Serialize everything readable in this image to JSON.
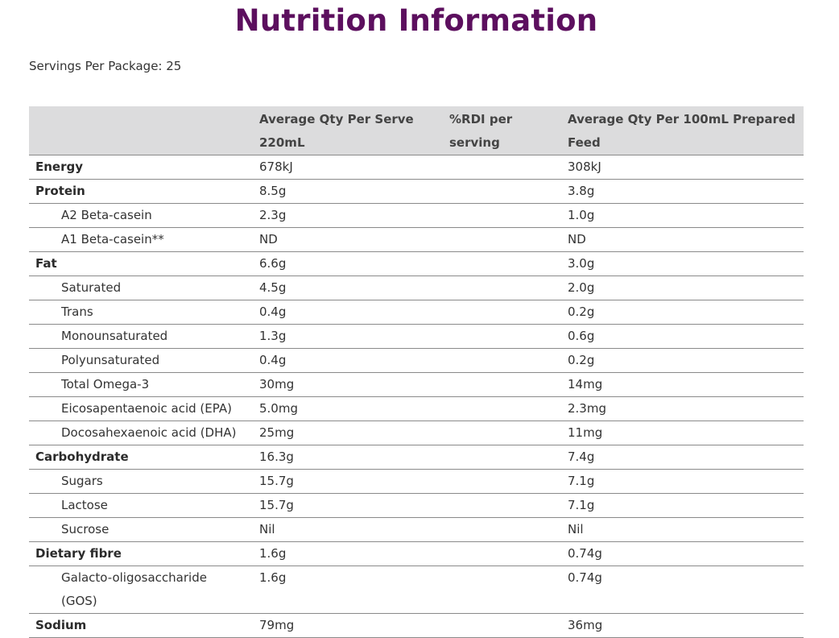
{
  "title": "Nutrition Information",
  "servings_text": "Servings Per Package: 25",
  "table": {
    "headers": [
      "",
      "Average Qty Per Serve 220mL",
      "%RDI per serving",
      "Average Qty Per 100mL Prepared Feed"
    ],
    "rows": [
      {
        "label": "Energy",
        "level": "main",
        "per_serve": "678kJ",
        "rdi": "",
        "per_100ml": "308kJ"
      },
      {
        "label": "Protein",
        "level": "main",
        "per_serve": "8.5g",
        "rdi": "",
        "per_100ml": "3.8g"
      },
      {
        "label": "A2 Beta-casein",
        "level": "sub",
        "per_serve": "2.3g",
        "rdi": "",
        "per_100ml": "1.0g"
      },
      {
        "label": "A1 Beta-casein**",
        "level": "sub",
        "per_serve": "ND",
        "rdi": "",
        "per_100ml": "ND"
      },
      {
        "label": "Fat",
        "level": "main",
        "per_serve": "6.6g",
        "rdi": "",
        "per_100ml": "3.0g"
      },
      {
        "label": "Saturated",
        "level": "sub",
        "per_serve": "4.5g",
        "rdi": "",
        "per_100ml": "2.0g"
      },
      {
        "label": "Trans",
        "level": "sub",
        "per_serve": "0.4g",
        "rdi": "",
        "per_100ml": "0.2g"
      },
      {
        "label": "Monounsaturated",
        "level": "sub",
        "per_serve": "1.3g",
        "rdi": "",
        "per_100ml": "0.6g"
      },
      {
        "label": "Polyunsaturated",
        "level": "sub",
        "per_serve": "0.4g",
        "rdi": "",
        "per_100ml": "0.2g"
      },
      {
        "label": "Total Omega-3",
        "level": "sub",
        "per_serve": "30mg",
        "rdi": "",
        "per_100ml": "14mg"
      },
      {
        "label": "Eicosapentaenoic acid (EPA)",
        "level": "sub",
        "per_serve": "5.0mg",
        "rdi": "",
        "per_100ml": "2.3mg"
      },
      {
        "label": "Docosahexaenoic acid (DHA)",
        "level": "sub",
        "per_serve": "25mg",
        "rdi": "",
        "per_100ml": "11mg"
      },
      {
        "label": "Carbohydrate",
        "level": "main",
        "per_serve": "16.3g",
        "rdi": "",
        "per_100ml": "7.4g"
      },
      {
        "label": "Sugars",
        "level": "sub",
        "per_serve": "15.7g",
        "rdi": "",
        "per_100ml": "7.1g"
      },
      {
        "label": "Lactose",
        "level": "sub",
        "per_serve": "15.7g",
        "rdi": "",
        "per_100ml": "7.1g"
      },
      {
        "label": "Sucrose",
        "level": "sub",
        "per_serve": "Nil",
        "rdi": "",
        "per_100ml": "Nil"
      },
      {
        "label": "Dietary fibre",
        "level": "main",
        "per_serve": "1.6g",
        "rdi": "",
        "per_100ml": "0.74g"
      },
      {
        "label": "Galacto-oligosaccharide (GOS)",
        "level": "sub",
        "per_serve": "1.6g",
        "rdi": "",
        "per_100ml": "0.74g"
      },
      {
        "label": "Sodium",
        "level": "main",
        "per_serve": "79mg",
        "rdi": "",
        "per_100ml": "36mg"
      }
    ]
  }
}
